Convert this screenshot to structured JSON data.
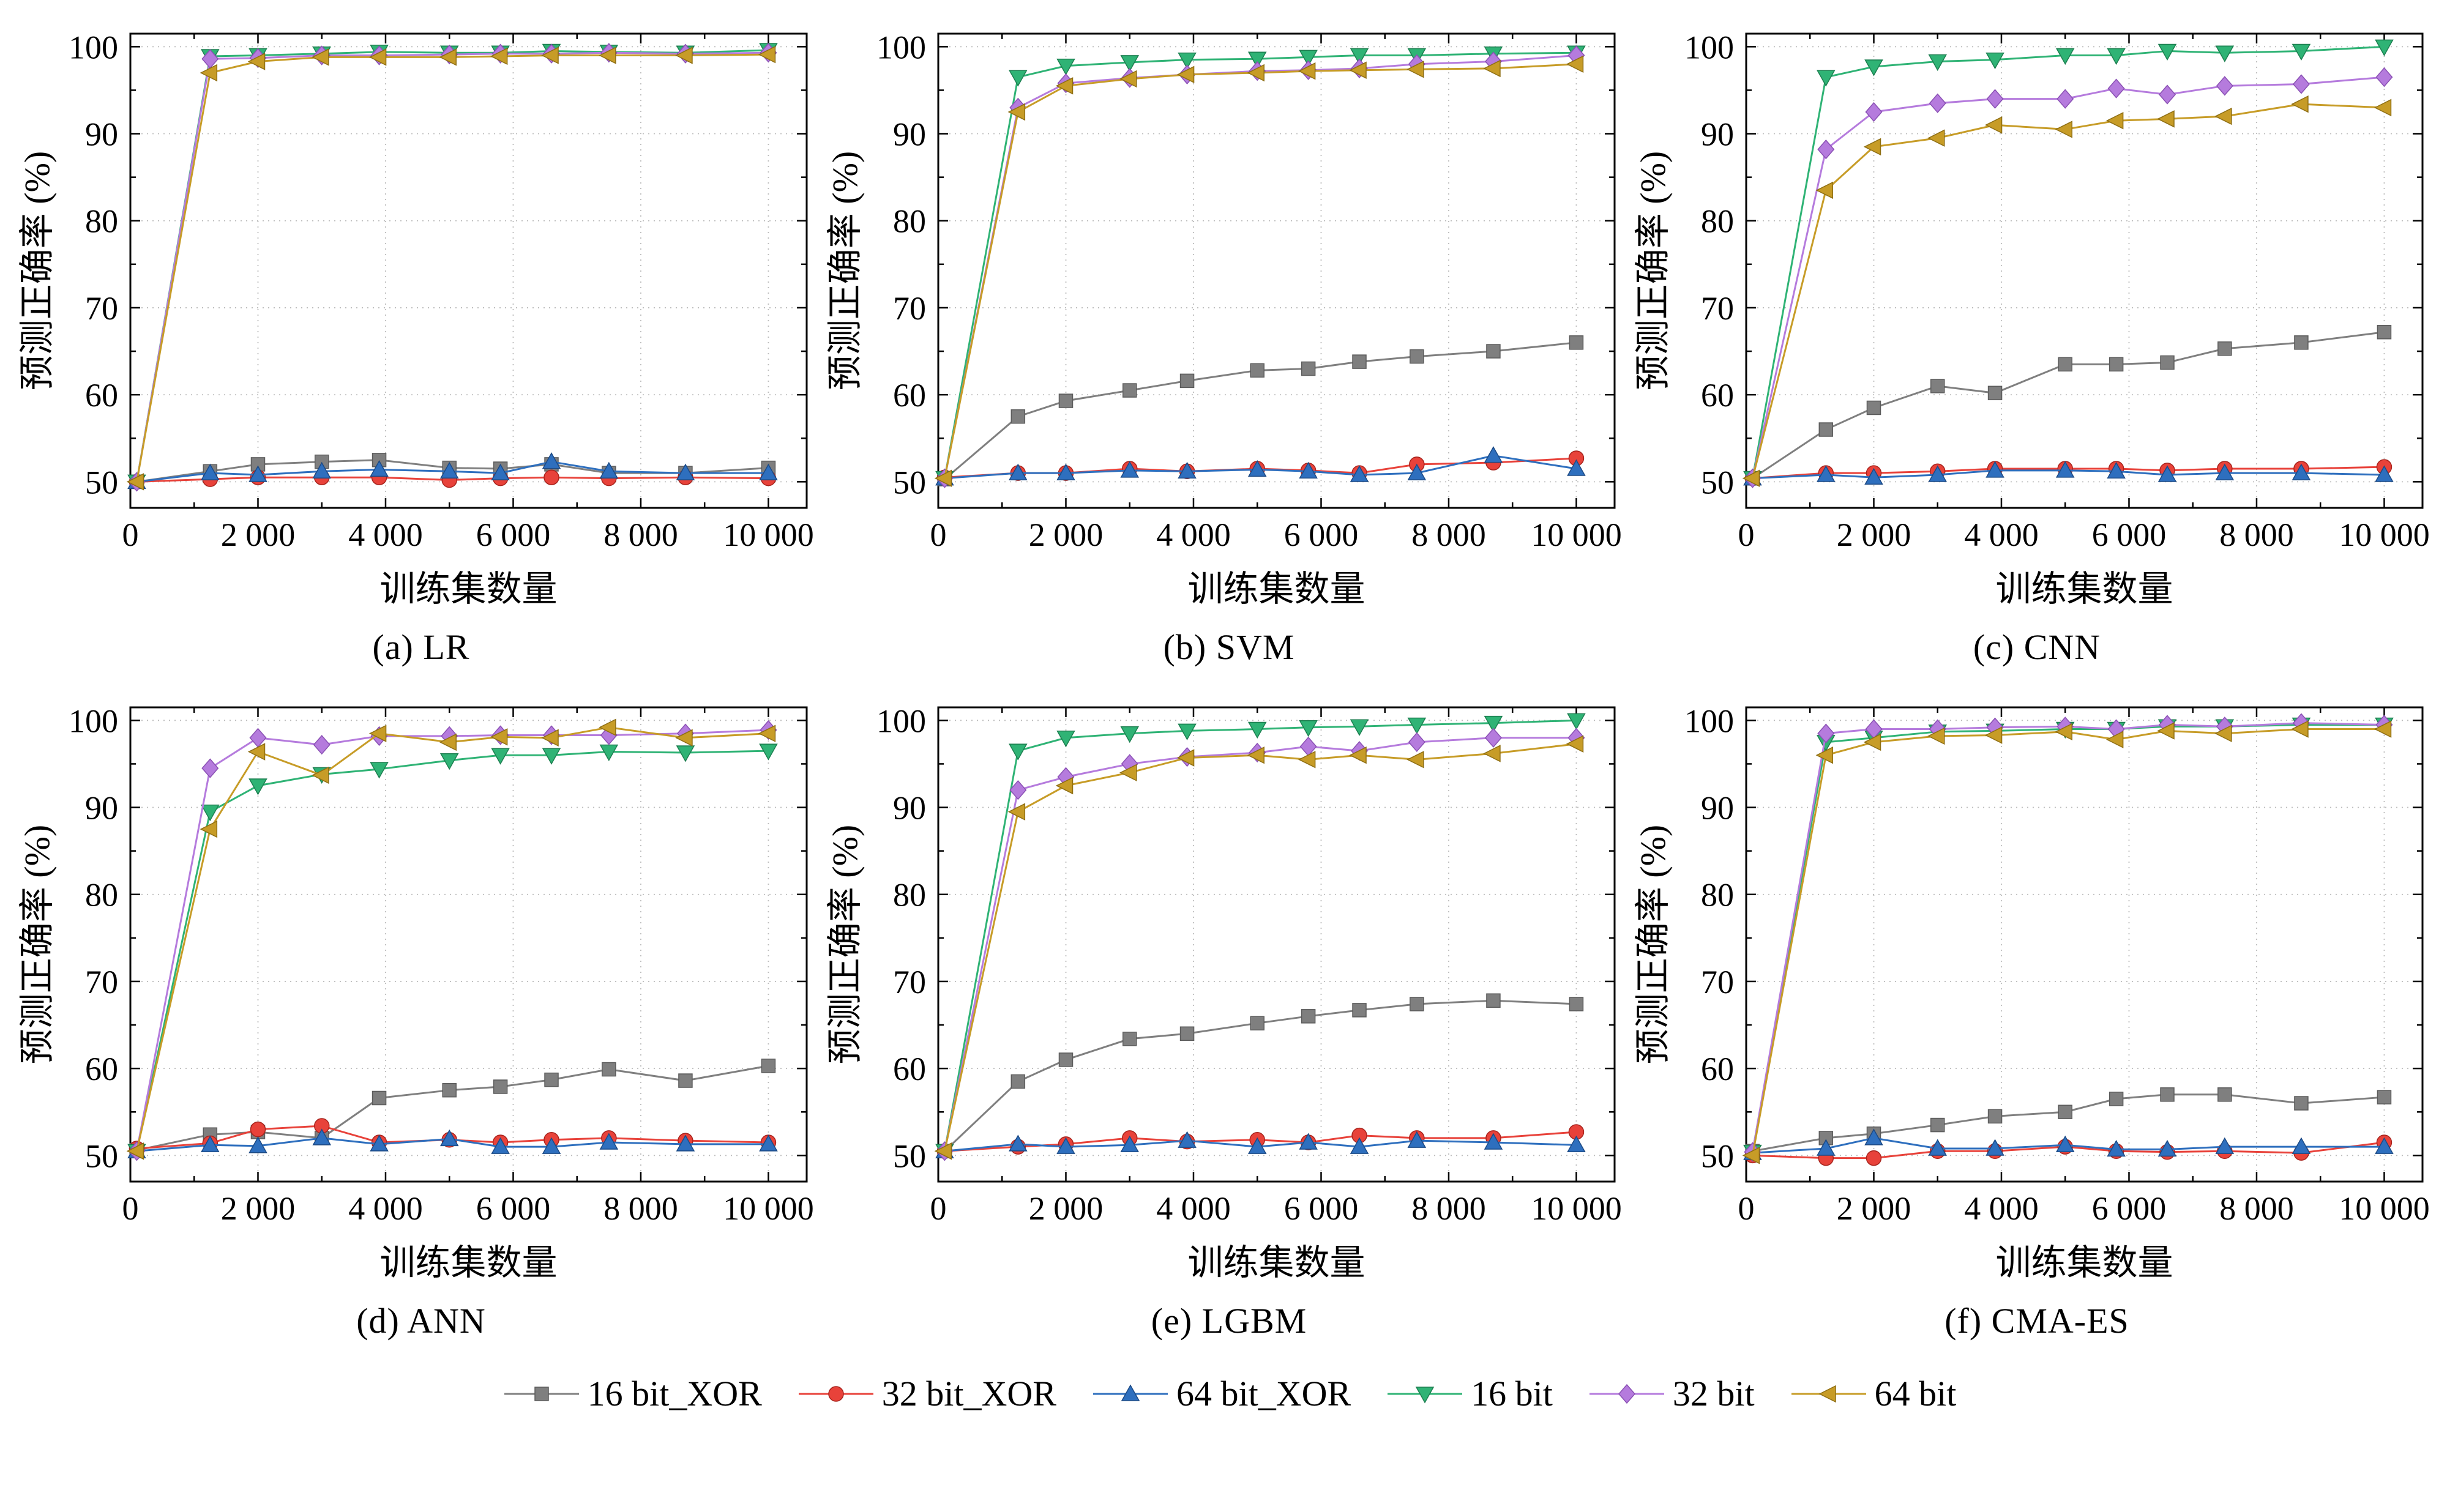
{
  "style": {
    "grid_color": "#bdbdbd",
    "frame_color": "#000000",
    "background": "#ffffff"
  },
  "axes": {
    "x_label": "训练集数量",
    "y_label": "预测正确率 (%)",
    "x_tick_labels": [
      "0",
      "2 000",
      "4 000",
      "6 000",
      "8 000",
      "10 000"
    ],
    "x_tick_values": [
      0,
      2000,
      4000,
      6000,
      8000,
      10000
    ],
    "x_minor_ticks": [
      1000,
      3000,
      5000,
      7000,
      9000
    ],
    "y_ticks": [
      50,
      60,
      70,
      80,
      90,
      100
    ],
    "y_minor_ticks": [
      55,
      65,
      75,
      85,
      95
    ],
    "xlim": [
      0,
      10600
    ],
    "ylim": [
      47,
      101.5
    ],
    "grid": true
  },
  "series_meta": [
    {
      "name": "16 bit_XOR",
      "color": "#7f7f7f",
      "edge": "#5c5c5c",
      "marker": "square"
    },
    {
      "name": "32 bit_XOR",
      "color": "#e8423a",
      "edge": "#a8241d",
      "marker": "circle"
    },
    {
      "name": "64 bit_XOR",
      "color": "#2e6fbe",
      "edge": "#1c4a85",
      "marker": "triangle-up"
    },
    {
      "name": "16 bit",
      "color": "#2fb375",
      "edge": "#1d7f50",
      "marker": "triangle-down"
    },
    {
      "name": "32 bit",
      "color": "#b57bdd",
      "edge": "#8a50b4",
      "marker": "diamond"
    },
    {
      "name": "64 bit",
      "color": "#c79c27",
      "edge": "#8f6f14",
      "marker": "triangle-left"
    }
  ],
  "legend": {
    "items": [
      {
        "label": "16 bit_XOR"
      },
      {
        "label": "32 bit_XOR"
      },
      {
        "label": "64 bit_XOR"
      },
      {
        "label": "16 bit"
      },
      {
        "label": "32 bit"
      },
      {
        "label": "64 bit"
      }
    ]
  },
  "chart_data": [
    {
      "type": "line",
      "caption": "(a) LR",
      "xlabel": "训练集数量",
      "ylabel": "预测正确率 (%)",
      "x": [
        100,
        1250,
        2000,
        3000,
        3900,
        5000,
        5800,
        6600,
        7500,
        8700,
        10000
      ],
      "series": [
        {
          "name": "16 bit_XOR",
          "values": [
            50.0,
            51.2,
            52.0,
            52.3,
            52.5,
            51.6,
            51.5,
            52.0,
            51.0,
            51.0,
            51.6
          ]
        },
        {
          "name": "32 bit_XOR",
          "values": [
            50.0,
            50.3,
            50.5,
            50.5,
            50.5,
            50.2,
            50.4,
            50.5,
            50.4,
            50.5,
            50.4
          ]
        },
        {
          "name": "64 bit_XOR",
          "values": [
            50.0,
            51.0,
            50.8,
            51.2,
            51.4,
            51.2,
            51.0,
            52.3,
            51.2,
            51.0,
            51.0
          ]
        },
        {
          "name": "16 bit",
          "values": [
            50.0,
            98.9,
            99.0,
            99.2,
            99.4,
            99.3,
            99.3,
            99.5,
            99.4,
            99.3,
            99.6
          ]
        },
        {
          "name": "32 bit",
          "values": [
            50.0,
            98.6,
            98.7,
            99.0,
            99.0,
            99.1,
            99.2,
            99.2,
            99.3,
            99.2,
            99.3
          ]
        },
        {
          "name": "64 bit",
          "values": [
            50.0,
            97.0,
            98.3,
            98.8,
            98.8,
            98.8,
            98.9,
            99.0,
            99.0,
            99.0,
            99.1
          ]
        }
      ]
    },
    {
      "type": "line",
      "caption": "(b) SVM",
      "xlabel": "训练集数量",
      "ylabel": "预测正确率 (%)",
      "x": [
        100,
        1250,
        2000,
        3000,
        3900,
        5000,
        5800,
        6600,
        7500,
        8700,
        10000
      ],
      "series": [
        {
          "name": "16 bit_XOR",
          "values": [
            50.3,
            57.5,
            59.3,
            60.5,
            61.6,
            62.8,
            63.0,
            63.8,
            64.4,
            65.0,
            66.0
          ]
        },
        {
          "name": "32 bit_XOR",
          "values": [
            50.5,
            51.0,
            51.0,
            51.5,
            51.2,
            51.5,
            51.3,
            51.0,
            52.0,
            52.2,
            52.7
          ]
        },
        {
          "name": "64 bit_XOR",
          "values": [
            50.4,
            51.0,
            51.0,
            51.3,
            51.2,
            51.4,
            51.2,
            50.8,
            51.0,
            53.0,
            51.5
          ]
        },
        {
          "name": "16 bit",
          "values": [
            50.4,
            96.5,
            97.8,
            98.2,
            98.5,
            98.6,
            98.8,
            99.0,
            99.0,
            99.2,
            99.3
          ]
        },
        {
          "name": "32 bit",
          "values": [
            50.4,
            93.0,
            95.8,
            96.4,
            96.8,
            97.2,
            97.3,
            97.5,
            98.0,
            98.3,
            99.0
          ]
        },
        {
          "name": "64 bit",
          "values": [
            50.4,
            92.5,
            95.5,
            96.3,
            96.8,
            97.0,
            97.2,
            97.3,
            97.4,
            97.5,
            98.0
          ]
        }
      ]
    },
    {
      "type": "line",
      "caption": "(c) CNN",
      "xlabel": "训练集数量",
      "ylabel": "预测正确率 (%)",
      "x": [
        100,
        1250,
        2000,
        3000,
        3900,
        5000,
        5800,
        6600,
        7500,
        8700,
        10000
      ],
      "series": [
        {
          "name": "16 bit_XOR",
          "values": [
            50.4,
            56.0,
            58.5,
            61.0,
            60.2,
            63.5,
            63.5,
            63.7,
            65.3,
            66.0,
            67.2
          ]
        },
        {
          "name": "32 bit_XOR",
          "values": [
            50.4,
            51.0,
            51.0,
            51.2,
            51.5,
            51.5,
            51.5,
            51.3,
            51.5,
            51.5,
            51.7
          ]
        },
        {
          "name": "64 bit_XOR",
          "values": [
            50.4,
            50.8,
            50.5,
            50.8,
            51.3,
            51.3,
            51.2,
            50.8,
            51.0,
            51.0,
            50.8
          ]
        },
        {
          "name": "16 bit",
          "values": [
            50.4,
            96.5,
            97.7,
            98.3,
            98.5,
            99.0,
            99.0,
            99.5,
            99.3,
            99.5,
            100.0
          ]
        },
        {
          "name": "32 bit",
          "values": [
            50.4,
            88.2,
            92.5,
            93.5,
            94.0,
            94.0,
            95.2,
            94.5,
            95.5,
            95.7,
            96.5
          ]
        },
        {
          "name": "64 bit",
          "values": [
            50.4,
            83.5,
            88.5,
            89.5,
            91.0,
            90.5,
            91.5,
            91.7,
            92.0,
            93.4,
            93.0
          ]
        }
      ]
    },
    {
      "type": "line",
      "caption": "(d) ANN",
      "xlabel": "训练集数量",
      "ylabel": "预测正确率 (%)",
      "x": [
        100,
        1250,
        2000,
        3000,
        3900,
        5000,
        5800,
        6600,
        7500,
        8700,
        10000
      ],
      "series": [
        {
          "name": "16 bit_XOR",
          "values": [
            50.6,
            52.4,
            52.7,
            52.0,
            56.6,
            57.5,
            57.9,
            58.7,
            59.9,
            58.6,
            60.3
          ]
        },
        {
          "name": "32 bit_XOR",
          "values": [
            50.8,
            51.4,
            53.0,
            53.4,
            51.5,
            51.8,
            51.5,
            51.8,
            52.0,
            51.7,
            51.5
          ]
        },
        {
          "name": "64 bit_XOR",
          "values": [
            50.5,
            51.2,
            51.1,
            52.0,
            51.3,
            51.9,
            51.0,
            51.0,
            51.5,
            51.3,
            51.3
          ]
        },
        {
          "name": "16 bit",
          "values": [
            50.5,
            89.5,
            92.5,
            93.8,
            94.4,
            95.4,
            96.0,
            96.0,
            96.4,
            96.3,
            96.5
          ]
        },
        {
          "name": "32 bit",
          "values": [
            50.5,
            94.5,
            98.0,
            97.2,
            98.2,
            98.2,
            98.3,
            98.3,
            98.3,
            98.5,
            98.9
          ]
        },
        {
          "name": "64 bit",
          "values": [
            50.5,
            87.5,
            96.4,
            93.7,
            98.5,
            97.5,
            98.1,
            98.0,
            99.2,
            98.0,
            98.5
          ]
        }
      ]
    },
    {
      "type": "line",
      "caption": "(e) LGBM",
      "xlabel": "训练集数量",
      "ylabel": "预测正确率 (%)",
      "x": [
        100,
        1250,
        2000,
        3000,
        3900,
        5000,
        5800,
        6600,
        7500,
        8700,
        10000
      ],
      "series": [
        {
          "name": "16 bit_XOR",
          "values": [
            50.5,
            58.5,
            61.0,
            63.4,
            64.0,
            65.2,
            66.0,
            66.7,
            67.4,
            67.8,
            67.4
          ]
        },
        {
          "name": "32 bit_XOR",
          "values": [
            50.5,
            51.0,
            51.3,
            52.0,
            51.6,
            51.8,
            51.5,
            52.3,
            52.0,
            52.0,
            52.7
          ]
        },
        {
          "name": "64 bit_XOR",
          "values": [
            50.5,
            51.3,
            51.0,
            51.2,
            51.7,
            51.0,
            51.5,
            51.0,
            51.7,
            51.5,
            51.2
          ]
        },
        {
          "name": "16 bit",
          "values": [
            50.5,
            96.5,
            98.0,
            98.5,
            98.8,
            99.0,
            99.2,
            99.3,
            99.5,
            99.7,
            100.0
          ]
        },
        {
          "name": "32 bit",
          "values": [
            50.5,
            92.0,
            93.5,
            95.0,
            95.8,
            96.3,
            97.0,
            96.5,
            97.5,
            98.0,
            98.0
          ]
        },
        {
          "name": "64 bit",
          "values": [
            50.5,
            89.5,
            92.5,
            94.0,
            95.7,
            96.0,
            95.5,
            96.0,
            95.5,
            96.2,
            97.3
          ]
        }
      ]
    },
    {
      "type": "line",
      "caption": "(f) CMA-ES",
      "xlabel": "训练集数量",
      "ylabel": "预测正确率 (%)",
      "x": [
        100,
        1250,
        2000,
        3000,
        3900,
        5000,
        5800,
        6600,
        7500,
        8700,
        10000
      ],
      "series": [
        {
          "name": "16 bit_XOR",
          "values": [
            50.5,
            52.0,
            52.5,
            53.5,
            54.5,
            55.0,
            56.5,
            57.0,
            57.0,
            56.0,
            56.7
          ]
        },
        {
          "name": "32 bit_XOR",
          "values": [
            50.0,
            49.7,
            49.7,
            50.5,
            50.5,
            51.0,
            50.5,
            50.4,
            50.5,
            50.3,
            51.5
          ]
        },
        {
          "name": "64 bit_XOR",
          "values": [
            50.3,
            50.8,
            52.0,
            50.8,
            50.8,
            51.2,
            50.7,
            50.7,
            51.0,
            51.0,
            51.0
          ]
        },
        {
          "name": "16 bit",
          "values": [
            50.4,
            97.5,
            98.0,
            98.7,
            98.8,
            99.0,
            99.0,
            99.3,
            99.3,
            99.5,
            99.5
          ]
        },
        {
          "name": "32 bit",
          "values": [
            50.4,
            98.5,
            99.0,
            99.0,
            99.2,
            99.3,
            99.0,
            99.5,
            99.3,
            99.7,
            99.5
          ]
        },
        {
          "name": "64 bit",
          "values": [
            50.0,
            96.0,
            97.5,
            98.2,
            98.3,
            98.7,
            97.8,
            98.8,
            98.5,
            99.0,
            99.0
          ]
        }
      ]
    }
  ]
}
